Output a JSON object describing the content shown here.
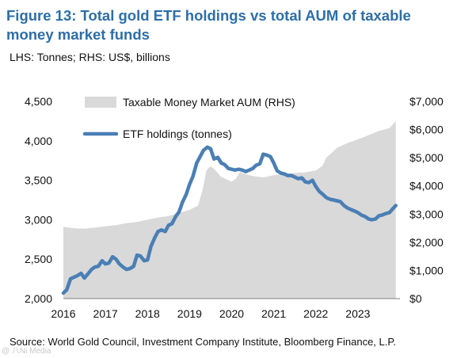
{
  "title": "Figure 13: Total gold ETF holdings vs total AUM of taxable money market funds",
  "subtitle": "LHS: Tonnes; RHS: US$, billions",
  "source": "Source: World Gold Council, Investment Company Institute, Bloomberg Finance, L.P.",
  "watermark": "@ 八Ni Media",
  "chart_data": {
    "type": "line",
    "title": "Figure 13: Total gold ETF holdings vs total AUM of taxable money market funds",
    "x_ticks": [
      "2016",
      "2017",
      "2018",
      "2019",
      "2020",
      "2021",
      "2022",
      "2023"
    ],
    "xlim": [
      2016,
      2024
    ],
    "y_left": {
      "ticks": [
        "2,000",
        "2,500",
        "3,000",
        "3,500",
        "4,000",
        "4,500"
      ],
      "ylim": [
        2000,
        4500
      ]
    },
    "y_right": {
      "ticks": [
        "$0",
        "$1,000",
        "$2,000",
        "$3,000",
        "$4,000",
        "$5,000",
        "$6,000",
        "$7,000"
      ],
      "ylim": [
        0,
        7000
      ]
    },
    "grid": false,
    "legend_position": "top-left",
    "series": [
      {
        "name": "Taxable Money Market AUM (RHS)",
        "type": "area",
        "axis": "right",
        "color": "#d9d9d9",
        "x": [
          2016.0,
          2016.25,
          2016.5,
          2016.75,
          2017.0,
          2017.25,
          2017.5,
          2017.75,
          2018.0,
          2018.25,
          2018.5,
          2018.75,
          2019.0,
          2019.2,
          2019.3,
          2019.4,
          2019.5,
          2019.6,
          2019.75,
          2020.0,
          2020.1,
          2020.2,
          2020.25,
          2020.5,
          2020.75,
          2021.0,
          2021.25,
          2021.5,
          2021.75,
          2022.0,
          2022.15,
          2022.25,
          2022.5,
          2022.75,
          2023.0,
          2023.25,
          2023.5,
          2023.75,
          2023.9
        ],
        "values": [
          2550,
          2500,
          2480,
          2520,
          2570,
          2610,
          2680,
          2720,
          2800,
          2880,
          2930,
          3040,
          3150,
          3300,
          3800,
          4550,
          4700,
          4580,
          4320,
          4150,
          4250,
          4500,
          4450,
          4350,
          4300,
          4380,
          4420,
          4460,
          4480,
          4550,
          4700,
          5000,
          5350,
          5520,
          5650,
          5800,
          5950,
          6050,
          6300
        ]
      },
      {
        "name": "ETF holdings (tonnes)",
        "type": "line",
        "axis": "left",
        "color": "#4a7fb5",
        "x": [
          2016.0,
          2016.08,
          2016.17,
          2016.25,
          2016.33,
          2016.42,
          2016.5,
          2016.58,
          2016.67,
          2016.75,
          2016.83,
          2016.92,
          2017.0,
          2017.08,
          2017.17,
          2017.25,
          2017.33,
          2017.42,
          2017.5,
          2017.58,
          2017.67,
          2017.75,
          2017.83,
          2017.92,
          2018.0,
          2018.08,
          2018.17,
          2018.25,
          2018.33,
          2018.42,
          2018.5,
          2018.58,
          2018.67,
          2018.75,
          2018.83,
          2018.92,
          2019.0,
          2019.08,
          2019.17,
          2019.25,
          2019.33,
          2019.42,
          2019.5,
          2019.58,
          2019.67,
          2019.75,
          2019.83,
          2019.92,
          2020.0,
          2020.08,
          2020.17,
          2020.25,
          2020.33,
          2020.42,
          2020.5,
          2020.58,
          2020.67,
          2020.75,
          2020.83,
          2020.92,
          2021.0,
          2021.08,
          2021.17,
          2021.25,
          2021.33,
          2021.42,
          2021.5,
          2021.58,
          2021.67,
          2021.75,
          2021.83,
          2021.92,
          2022.0,
          2022.08,
          2022.17,
          2022.25,
          2022.33,
          2022.42,
          2022.5,
          2022.58,
          2022.67,
          2022.75,
          2022.83,
          2022.92,
          2023.0,
          2023.08,
          2023.17,
          2023.25,
          2023.33,
          2023.42,
          2023.5,
          2023.58,
          2023.67,
          2023.75,
          2023.83,
          2023.9
        ],
        "values": [
          2070,
          2110,
          2250,
          2270,
          2290,
          2320,
          2260,
          2310,
          2370,
          2400,
          2410,
          2480,
          2440,
          2450,
          2530,
          2500,
          2440,
          2400,
          2370,
          2380,
          2410,
          2550,
          2540,
          2480,
          2490,
          2660,
          2770,
          2850,
          2870,
          2850,
          2930,
          2950,
          3040,
          3100,
          3220,
          3320,
          3450,
          3550,
          3720,
          3800,
          3880,
          3920,
          3900,
          3770,
          3790,
          3720,
          3700,
          3650,
          3640,
          3630,
          3640,
          3630,
          3610,
          3630,
          3650,
          3690,
          3710,
          3830,
          3820,
          3800,
          3720,
          3620,
          3590,
          3580,
          3560,
          3560,
          3540,
          3520,
          3530,
          3480,
          3470,
          3500,
          3420,
          3360,
          3320,
          3280,
          3260,
          3250,
          3240,
          3230,
          3180,
          3150,
          3130,
          3110,
          3090,
          3060,
          3040,
          3010,
          3000,
          3010,
          3050,
          3060,
          3080,
          3090,
          3140,
          3180
        ]
      }
    ]
  }
}
